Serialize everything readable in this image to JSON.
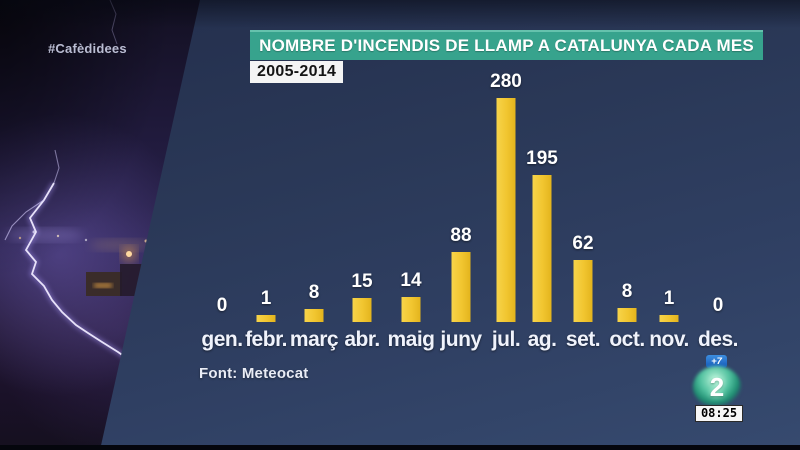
{
  "broadcast": {
    "hashtag": "#Cafèdidees",
    "channel_logo": "2",
    "plus7_badge": "+7",
    "clock": "08:25"
  },
  "chart": {
    "title": "NOMBRE D'INCENDIS DE LLAMP A CATALUNYA CADA MES",
    "period": "2005-2014",
    "source": "Font: Meteocat"
  },
  "chart_data": {
    "type": "bar",
    "title": "NOMBRE D'INCENDIS DE LLAMP A CATALUNYA CADA MES",
    "subtitle": "2005-2014",
    "source": "Font: Meteocat",
    "categories": [
      "gen.",
      "febr.",
      "març",
      "abr.",
      "maig",
      "juny",
      "jul.",
      "ag.",
      "set.",
      "oct.",
      "nov.",
      "des."
    ],
    "values": [
      0,
      1,
      8,
      15,
      14,
      88,
      280,
      195,
      62,
      8,
      1,
      0
    ],
    "value_labels_shown": true,
    "xlabel": "",
    "ylabel": "",
    "ylim": [
      0,
      300
    ],
    "grid": false,
    "legend": false,
    "bar_color": "#F1C52F",
    "label_color": "#FFFFFF"
  },
  "colors": {
    "panel_navy": "#2D3C5E",
    "banner_teal": "#37A38D",
    "bar_yellow": "#F1C52F",
    "badge_blue": "#1D64C4",
    "logo_teal": "#3DB695",
    "photo_purple": "#2B2350"
  }
}
